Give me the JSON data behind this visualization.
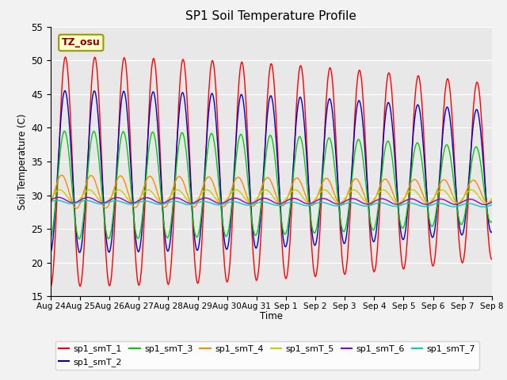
{
  "title": "SP1 Soil Temperature Profile",
  "xlabel": "Time",
  "ylabel": "Soil Temperature (C)",
  "ylim": [
    15,
    55
  ],
  "annotation": "TZ_osu",
  "background_color": "#ebebeb",
  "plot_bg_color": "#e8e8e8",
  "legend_entries": [
    "sp1_smT_1",
    "sp1_smT_2",
    "sp1_smT_3",
    "sp1_smT_4",
    "sp1_smT_5",
    "sp1_smT_6",
    "sp1_smT_7"
  ],
  "colors": [
    "#ff0000",
    "#0000cc",
    "#00cc00",
    "#ff8800",
    "#cccc00",
    "#9900cc",
    "#00cccc"
  ],
  "tick_dates": [
    "Aug 24",
    "Aug 25",
    "Aug 26",
    "Aug 27",
    "Aug 28",
    "Aug 29",
    "Aug 30",
    "Aug 31",
    "Sep 1",
    "Sep 2",
    "Sep 3",
    "Sep 4",
    "Sep 5",
    "Sep 6",
    "Sep 7",
    "Sep 8"
  ],
  "yticks": [
    15,
    20,
    25,
    30,
    35,
    40,
    45,
    50,
    55
  ]
}
